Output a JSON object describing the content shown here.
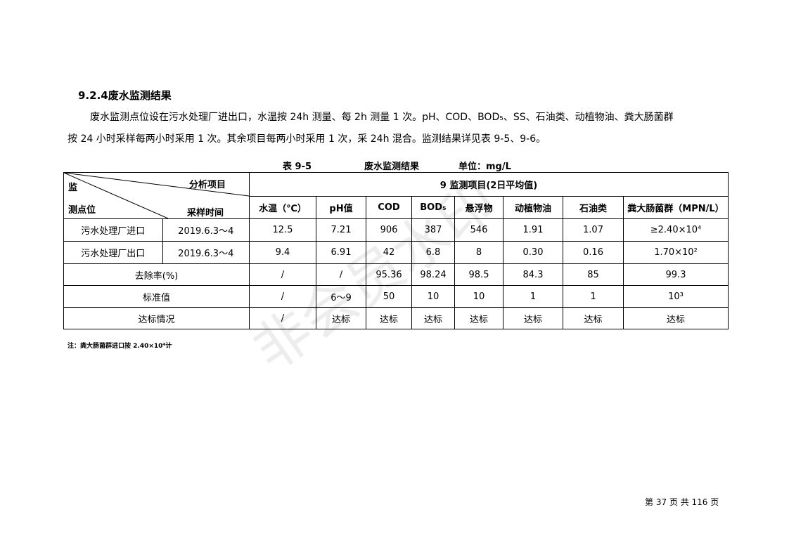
{
  "heading": "9.2.4废水监测结果",
  "para1": "废水监测点位设在污水处理厂进出口，水温按 24h 测量、每 2h 测量 1 次。pH、COD、BOD₅、SS、石油类、动植物油、粪大肠菌群",
  "para2": "按 24 小时采样每两小时采用 1 次。其余项目每两小时采用 1 次，采 24h 混合。监测结果详见表 9-5、9-6。",
  "caption": {
    "number": "表 9-5",
    "title": "废水监测结果",
    "unit": "单位：mg/L"
  },
  "table": {
    "corner": {
      "top_left": "监",
      "top_right": "分析项目",
      "bottom_left": "测点位",
      "bottom_right": "采样时间"
    },
    "group_header": "9 监测项目(2日平均值)",
    "columns": [
      "水温（℃）",
      "pH值",
      "COD",
      "BOD₅",
      "悬浮物",
      "动植物油",
      "石油类",
      "粪大肠菌群（MPN/L）"
    ],
    "rows": [
      {
        "site": "污水处理厂进口",
        "time": "2019.6.3～4",
        "values": [
          "12.5",
          "7.21",
          "906",
          "387",
          "546",
          "1.91",
          "1.07",
          "≥2.40×10⁴"
        ]
      },
      {
        "site": "污水处理厂出口",
        "time": "2019.6.3～4",
        "values": [
          "9.4",
          "6.91",
          "42",
          "6.8",
          "8",
          "0.30",
          "0.16",
          "1.70×10²"
        ]
      }
    ],
    "summary_rows": [
      {
        "label": "去除率(%)",
        "values": [
          "/",
          "/",
          "95.36",
          "98.24",
          "98.5",
          "84.3",
          "85",
          "99.3"
        ]
      },
      {
        "label": "标准值",
        "values": [
          "/",
          "6～9",
          "50",
          "10",
          "10",
          "1",
          "1",
          "10³"
        ]
      },
      {
        "label": "达标情况",
        "values": [
          "/",
          "达标",
          "达标",
          "达标",
          "达标",
          "达标",
          "达标",
          "达标"
        ]
      }
    ]
  },
  "note": "注：粪大肠菌群进口按 2.40×10⁴计",
  "footer": "第 37 页 共 116 页",
  "watermark": "非会员水印"
}
